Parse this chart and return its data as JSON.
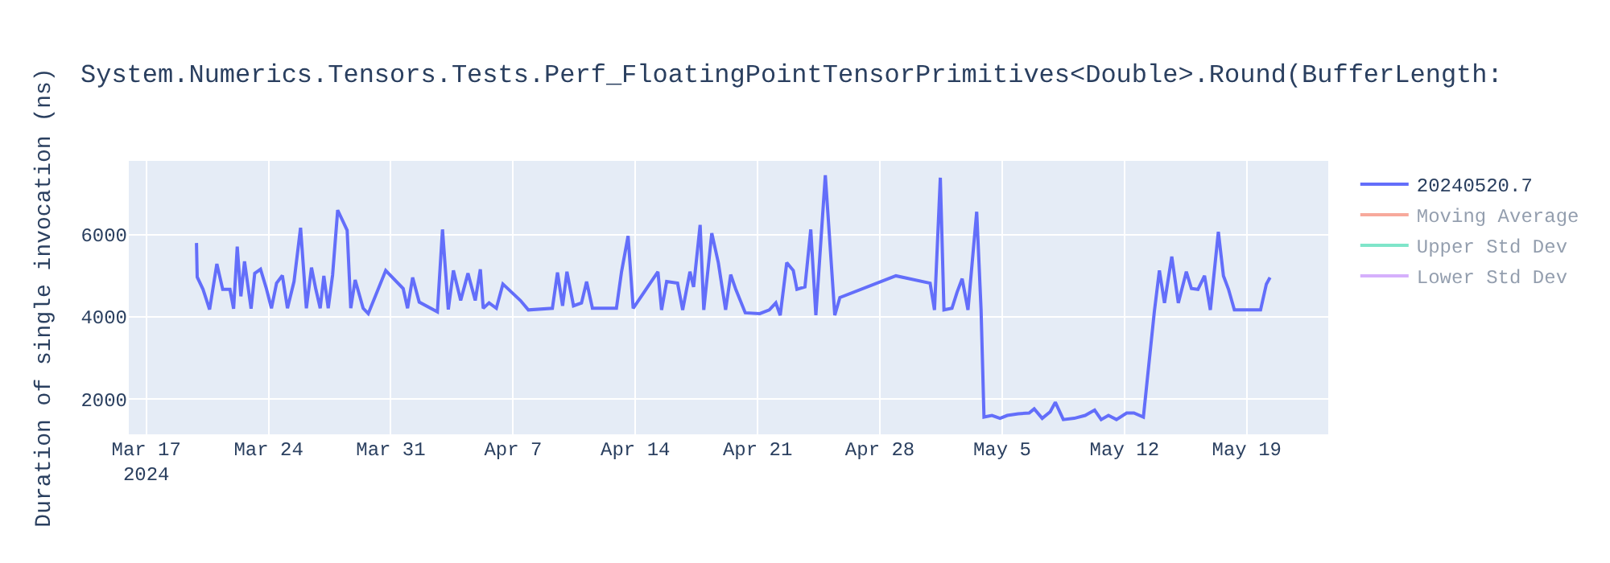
{
  "chart_data": {
    "type": "line",
    "title": "System.Numerics.Tensors.Tests.Perf_FloatingPointTensorPrimitives<Double>.Round(BufferLength:",
    "ylabel": "Duration of single invocation (ns)",
    "x": [
      "2024-03-19T21:00",
      "2024-03-19T22:00",
      "2024-03-20T06:00",
      "2024-03-20T15:00",
      "2024-03-21T01:00",
      "2024-03-21T09:00",
      "2024-03-21T19:00",
      "2024-03-22T00:00",
      "2024-03-22T05:00",
      "2024-03-22T10:00",
      "2024-03-22T15:00",
      "2024-03-23T00:00",
      "2024-03-23T05:00",
      "2024-03-23T13:00",
      "2024-03-23T21:00",
      "2024-03-24T04:00",
      "2024-03-24T11:00",
      "2024-03-24T19:00",
      "2024-03-25T02:00",
      "2024-03-25T11:00",
      "2024-03-25T20:00",
      "2024-03-26T04:00",
      "2024-03-26T11:00",
      "2024-03-26T17:00",
      "2024-03-26T23:00",
      "2024-03-27T04:00",
      "2024-03-27T10:00",
      "2024-03-27T16:00",
      "2024-03-27T23:00",
      "2024-03-28T12:00",
      "2024-03-28T17:00",
      "2024-03-28T23:00",
      "2024-03-29T10:00",
      "2024-03-29T17:00",
      "2024-03-30T17:00",
      "2024-03-31T17:00",
      "2024-03-31T23:00",
      "2024-04-01T06:00",
      "2024-04-01T15:00",
      "2024-04-02T16:00",
      "2024-04-02T23:00",
      "2024-04-03T07:00",
      "2024-04-03T14:00",
      "2024-04-04T00:00",
      "2024-04-04T10:00",
      "2024-04-04T20:00",
      "2024-04-05T03:00",
      "2024-04-05T07:00",
      "2024-04-05T15:00",
      "2024-04-06T01:00",
      "2024-04-06T10:00",
      "2024-04-07T10:00",
      "2024-04-07T21:00",
      "2024-04-09T06:00",
      "2024-04-09T13:00",
      "2024-04-09T20:00",
      "2024-04-10T02:00",
      "2024-04-10T11:00",
      "2024-04-10T22:00",
      "2024-04-11T05:00",
      "2024-04-11T13:00",
      "2024-04-12T22:00",
      "2024-04-13T05:00",
      "2024-04-13T14:00",
      "2024-04-13T21:00",
      "2024-04-15T07:00",
      "2024-04-15T12:00",
      "2024-04-15T19:00",
      "2024-04-16T10:00",
      "2024-04-16T17:00",
      "2024-04-17T03:00",
      "2024-04-17T08:00",
      "2024-04-17T17:00",
      "2024-04-17T22:00",
      "2024-04-18T09:00",
      "2024-04-18T18:00",
      "2024-04-19T04:00",
      "2024-04-19T11:00",
      "2024-04-19T18:00",
      "2024-04-20T07:00",
      "2024-04-21T03:00",
      "2024-04-21T16:00",
      "2024-04-22T01:00",
      "2024-04-22T07:00",
      "2024-04-22T16:00",
      "2024-04-23T01:00",
      "2024-04-23T06:00",
      "2024-04-23T17:00",
      "2024-04-24T01:00",
      "2024-04-24T08:00",
      "2024-04-24T21:00",
      "2024-04-25T10:00",
      "2024-04-25T17:00",
      "2024-04-28T22:00",
      "2024-04-30T21:00",
      "2024-05-01T03:00",
      "2024-05-01T11:00",
      "2024-05-01T16:00",
      "2024-05-02T03:00",
      "2024-05-02T10:00",
      "2024-05-02T17:00",
      "2024-05-03T01:00",
      "2024-05-03T13:00",
      "2024-05-03T19:00",
      "2024-05-03T23:00",
      "2024-05-04T10:00",
      "2024-05-04T21:00",
      "2024-05-05T07:00",
      "2024-05-05T22:00",
      "2024-05-06T13:00",
      "2024-05-06T20:00",
      "2024-05-07T07:00",
      "2024-05-07T18:00",
      "2024-05-08T01:00",
      "2024-05-08T12:00",
      "2024-05-09T03:00",
      "2024-05-09T18:00",
      "2024-05-10T07:00",
      "2024-05-10T16:00",
      "2024-05-11T02:00",
      "2024-05-11T13:00",
      "2024-05-12T03:00",
      "2024-05-12T13:00",
      "2024-05-13T02:00",
      "2024-05-13T17:00",
      "2024-05-14T00:00",
      "2024-05-14T07:00",
      "2024-05-14T17:00",
      "2024-05-15T02:00",
      "2024-05-15T13:00",
      "2024-05-15T20:00",
      "2024-05-16T05:00",
      "2024-05-16T14:00",
      "2024-05-16T22:00",
      "2024-05-17T09:00",
      "2024-05-17T16:00",
      "2024-05-17T23:00",
      "2024-05-18T07:00",
      "2024-05-19T19:00",
      "2024-05-20T03:00",
      "2024-05-20T08:00"
    ],
    "series": [
      {
        "name": "20240520.7",
        "color": "#636efa",
        "values": [
          5800,
          4970,
          4670,
          4180,
          5290,
          4670,
          4670,
          4200,
          5710,
          4500,
          5350,
          4200,
          5060,
          5160,
          4690,
          4210,
          4820,
          5010,
          4210,
          4860,
          6170,
          4210,
          5200,
          4670,
          4210,
          5000,
          4210,
          5020,
          6600,
          6110,
          4210,
          4900,
          4210,
          4080,
          5130,
          4690,
          4210,
          4960,
          4360,
          4120,
          6130,
          4180,
          5130,
          4400,
          5060,
          4400,
          5160,
          4210,
          4340,
          4210,
          4800,
          4400,
          4170,
          4210,
          5080,
          4270,
          5100,
          4270,
          4340,
          4860,
          4210,
          4210,
          5100,
          5970,
          4210,
          5100,
          4170,
          4860,
          4820,
          4170,
          5100,
          4730,
          6240,
          4170,
          6040,
          5320,
          4170,
          5030,
          4670,
          4100,
          4080,
          4170,
          4340,
          4040,
          5320,
          5130,
          4670,
          4730,
          6130,
          4040,
          7450,
          4040,
          4470,
          5000,
          4820,
          4170,
          7390,
          4170,
          4210,
          4600,
          4930,
          4170,
          6560,
          4170,
          1560,
          1600,
          1530,
          1600,
          1640,
          1660,
          1760,
          1530,
          1690,
          1920,
          1500,
          1530,
          1600,
          1730,
          1500,
          1600,
          1500,
          1660,
          1660,
          1560,
          4120,
          5130,
          4340,
          5470,
          4340,
          5100,
          4690,
          4670,
          5000,
          4170,
          6070,
          5000,
          4670,
          4170,
          4170,
          4800,
          4960
        ]
      },
      {
        "name": "Moving Average",
        "color": "#ef553b",
        "values": [
          null,
          null,
          null,
          null,
          null,
          null,
          null,
          null,
          null,
          null,
          null,
          null,
          null,
          null,
          null,
          null,
          null,
          null,
          null,
          null,
          null,
          null,
          null,
          null,
          null,
          null,
          null,
          null,
          null,
          null,
          null,
          null,
          null,
          null,
          null,
          null,
          null,
          null,
          null,
          null,
          null,
          null,
          null,
          null,
          null,
          null,
          null,
          null,
          null,
          null,
          null,
          null,
          null,
          null,
          null,
          null,
          null,
          null,
          null,
          null,
          null,
          null,
          null,
          null,
          null,
          null,
          null,
          null,
          null,
          null,
          null,
          null,
          null,
          null,
          null,
          null,
          null,
          null,
          null,
          null,
          null,
          null,
          null,
          null,
          null,
          null,
          null,
          null,
          null,
          null,
          null,
          null,
          null,
          null,
          null,
          null,
          null,
          null,
          null,
          null,
          null,
          null,
          null,
          null,
          null,
          null,
          null,
          null,
          null,
          null,
          null,
          null,
          null,
          null,
          null,
          null,
          null,
          null,
          null,
          null,
          null,
          null,
          null,
          null,
          null,
          null,
          null,
          null,
          null,
          null,
          null,
          null,
          null,
          null,
          null,
          null,
          null,
          null,
          null,
          null,
          null
        ]
      },
      {
        "name": "Upper Std Dev",
        "color": "#00cc96",
        "values": [
          null,
          null,
          null,
          null,
          null,
          null,
          null,
          null,
          null,
          null,
          null,
          null,
          null,
          null,
          null,
          null,
          null,
          null,
          null,
          null,
          null,
          null,
          null,
          null,
          null,
          null,
          null,
          null,
          null,
          null,
          null,
          null,
          null,
          null,
          null,
          null,
          null,
          null,
          null,
          null,
          null,
          null,
          null,
          null,
          null,
          null,
          null,
          null,
          null,
          null,
          null,
          null,
          null,
          null,
          null,
          null,
          null,
          null,
          null,
          null,
          null,
          null,
          null,
          null,
          null,
          null,
          null,
          null,
          null,
          null,
          null,
          null,
          null,
          null,
          null,
          null,
          null,
          null,
          null,
          null,
          null,
          null,
          null,
          null,
          null,
          null,
          null,
          null,
          null,
          null,
          null,
          null,
          null,
          null,
          null,
          null,
          null,
          null,
          null,
          null,
          null,
          null,
          null,
          null,
          null,
          null,
          null,
          null,
          null,
          null,
          null,
          null,
          null,
          null,
          null,
          null,
          null,
          null,
          null,
          null,
          null,
          null,
          null,
          null,
          null,
          null,
          null,
          null,
          null,
          null,
          null,
          null,
          null,
          null,
          null,
          null,
          null,
          null,
          null,
          null,
          null
        ]
      },
      {
        "name": "Lower Std Dev",
        "color": "#ab63fa",
        "values": [
          null,
          null,
          null,
          null,
          null,
          null,
          null,
          null,
          null,
          null,
          null,
          null,
          null,
          null,
          null,
          null,
          null,
          null,
          null,
          null,
          null,
          null,
          null,
          null,
          null,
          null,
          null,
          null,
          null,
          null,
          null,
          null,
          null,
          null,
          null,
          null,
          null,
          null,
          null,
          null,
          null,
          null,
          null,
          null,
          null,
          null,
          null,
          null,
          null,
          null,
          null,
          null,
          null,
          null,
          null,
          null,
          null,
          null,
          null,
          null,
          null,
          null,
          null,
          null,
          null,
          null,
          null,
          null,
          null,
          null,
          null,
          null,
          null,
          null,
          null,
          null,
          null,
          null,
          null,
          null,
          null,
          null,
          null,
          null,
          null,
          null,
          null,
          null,
          null,
          null,
          null,
          null,
          null,
          null,
          null,
          null,
          null,
          null,
          null,
          null,
          null,
          null,
          null,
          null,
          null,
          null,
          null,
          null,
          null,
          null,
          null,
          null,
          null,
          null,
          null,
          null,
          null,
          null,
          null,
          null,
          null,
          null,
          null,
          null,
          null,
          null,
          null,
          null,
          null,
          null,
          null,
          null,
          null,
          null,
          null,
          null,
          null,
          null,
          null,
          null,
          null
        ]
      }
    ],
    "xlim": [
      "2024-03-16",
      "2024-05-23T16:00"
    ],
    "xticks": [
      {
        "value": "2024-03-17",
        "label": "Mar 17\n2024"
      },
      {
        "value": "2024-03-24",
        "label": "Mar 24"
      },
      {
        "value": "2024-03-31",
        "label": "Mar 31"
      },
      {
        "value": "2024-04-07",
        "label": "Apr 7"
      },
      {
        "value": "2024-04-14",
        "label": "Apr 14"
      },
      {
        "value": "2024-04-21",
        "label": "Apr 21"
      },
      {
        "value": "2024-04-28",
        "label": "Apr 28"
      },
      {
        "value": "2024-05-05",
        "label": "May 5"
      },
      {
        "value": "2024-05-12",
        "label": "May 12"
      },
      {
        "value": "2024-05-19",
        "label": "May 19"
      }
    ],
    "ylim": [
      1140,
      7800
    ],
    "yticks": [
      2000,
      4000,
      6000
    ],
    "grid": true,
    "legend": "top right",
    "marker": "none",
    "line_style": "solid"
  }
}
